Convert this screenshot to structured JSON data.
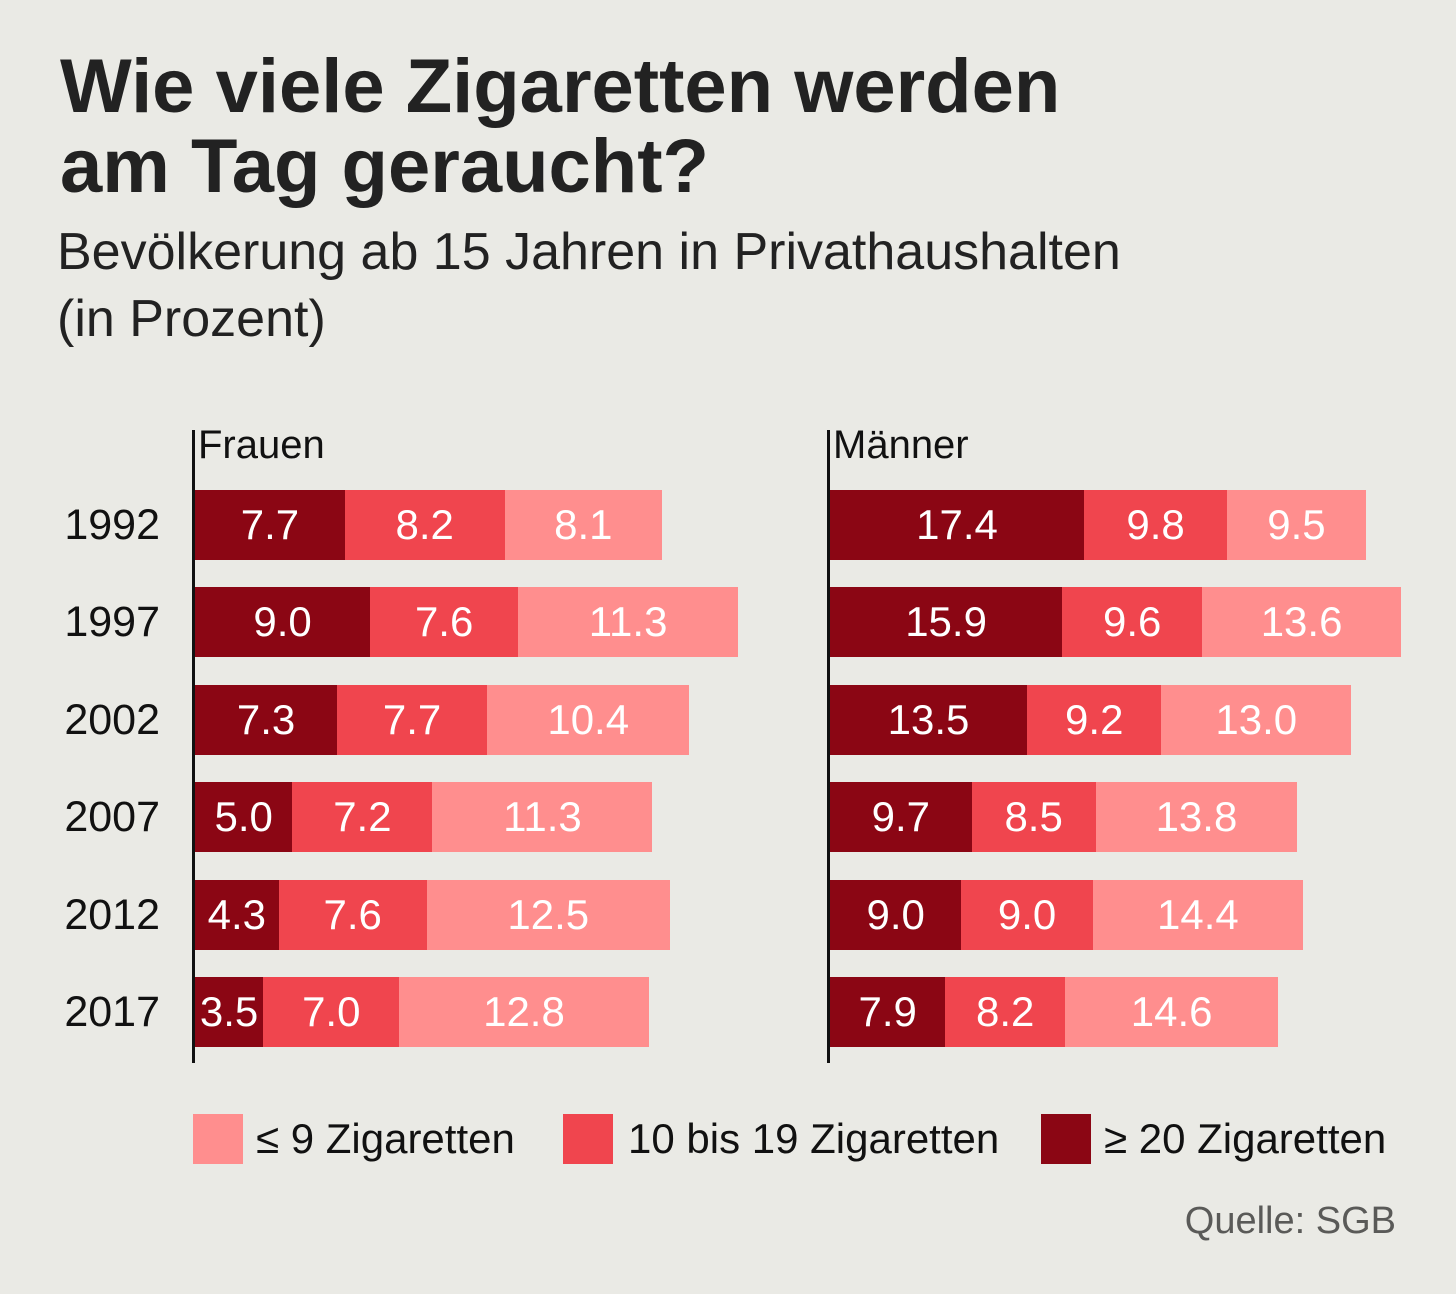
{
  "chart_data": {
    "type": "bar",
    "orientation": "horizontal",
    "stacked": true,
    "title": [
      "Wie viele Zigaretten werden",
      "am Tag geraucht?"
    ],
    "subtitle": [
      "Bevölkerung ab 15 Jahren in Privathaushalten",
      "(in Prozent)"
    ],
    "xlabel": "",
    "ylabel": "",
    "grid": false,
    "value_decimals": 1,
    "categories": [
      "1992",
      "1997",
      "2002",
      "2007",
      "2012",
      "2017"
    ],
    "panels": [
      {
        "title": "Frauen",
        "xlim": [
          0,
          30
        ],
        "series": [
          {
            "name": "≥ 20 Zigaretten",
            "values": [
              7.7,
              9.0,
              7.3,
              5.0,
              4.3,
              3.5
            ]
          },
          {
            "name": "10 bis 19 Zigaretten",
            "values": [
              8.2,
              7.6,
              7.7,
              7.2,
              7.6,
              7.0
            ]
          },
          {
            "name": "≤ 9 Zigaretten",
            "values": [
              8.1,
              11.3,
              10.4,
              11.3,
              12.5,
              12.8
            ]
          }
        ]
      },
      {
        "title": "Männer",
        "xlim": [
          0,
          40
        ],
        "series": [
          {
            "name": "≥ 20 Zigaretten",
            "values": [
              17.4,
              15.9,
              13.5,
              9.7,
              9.0,
              7.9
            ]
          },
          {
            "name": "10 bis 19 Zigaretten",
            "values": [
              9.8,
              9.6,
              9.2,
              8.5,
              9.0,
              8.2
            ]
          },
          {
            "name": "≤ 9 Zigaretten",
            "values": [
              9.5,
              13.6,
              13.0,
              13.8,
              14.4,
              14.6
            ]
          }
        ]
      }
    ],
    "legend": {
      "position": "bottom",
      "items": [
        {
          "label": "≤ 9 Zigaretten",
          "color": "#ff8e8e"
        },
        {
          "label": "10 bis 19 Zigaretten",
          "color": "#f0454e"
        },
        {
          "label": "≥ 20 Zigaretten",
          "color": "#8b0614"
        }
      ]
    },
    "source": "Quelle: SGB"
  }
}
